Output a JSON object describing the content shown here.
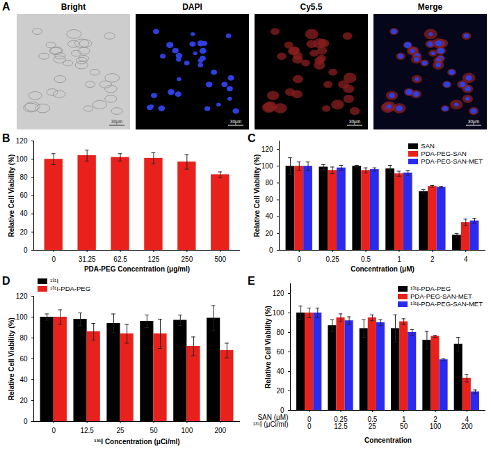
{
  "images": {
    "panel": "A",
    "titles": [
      "Bright",
      "DAPI",
      "Cy5.5",
      "Merge"
    ],
    "scale_bar": "30μm"
  },
  "chart_data": [
    {
      "panel": "B",
      "type": "bar",
      "categories": [
        "0",
        "31.25",
        "62.5",
        "125",
        "250",
        "500"
      ],
      "values": [
        100,
        104,
        102,
        101,
        97,
        83
      ],
      "errors": [
        6,
        6,
        4,
        6,
        8,
        3
      ],
      "color": "#e8211c",
      "xlabel": "PDA-PEG Concentration (μg/ml)",
      "ylabel": "Relative Cell Viability (%)",
      "ylim": [
        0,
        120
      ],
      "yticks": [
        0,
        20,
        40,
        60,
        80,
        100,
        120
      ]
    },
    {
      "panel": "C",
      "type": "bar",
      "categories": [
        "0",
        "0.25",
        "0.5",
        "1",
        "2",
        "4"
      ],
      "series": [
        {
          "name": "SAN",
          "color": "#000000",
          "values": [
            100,
            99,
            100,
            97,
            70,
            18
          ],
          "errors": [
            10,
            3,
            1,
            4,
            2,
            2
          ]
        },
        {
          "name": "PDA-PEG-SAN",
          "color": "#e8211c",
          "values": [
            100,
            95,
            95,
            91,
            76,
            33
          ],
          "errors": [
            5,
            4,
            3,
            3,
            1,
            4
          ]
        },
        {
          "name": "PDA-PEG-SAN-MET",
          "color": "#2b2bf0",
          "values": [
            100,
            98,
            96,
            92,
            75,
            35
          ],
          "errors": [
            5,
            3,
            2,
            3,
            1,
            3
          ]
        }
      ],
      "xlabel": "Concentration (μM)",
      "ylabel": "Relative Cell Viability (%)",
      "ylim": [
        0,
        130
      ],
      "yticks": [
        0,
        20,
        40,
        60,
        80,
        100,
        120
      ],
      "legend": "top-right"
    },
    {
      "panel": "D",
      "type": "bar",
      "categories": [
        "0",
        "12.5",
        "25",
        "50",
        "100",
        "200"
      ],
      "series": [
        {
          "name": "¹³¹I",
          "color": "#000000",
          "values": [
            100,
            98,
            94,
            96,
            97,
            99
          ],
          "errors": [
            3,
            6,
            9,
            6,
            5,
            12
          ]
        },
        {
          "name": "¹³¹I-PDA-PEG",
          "color": "#e8211c",
          "values": [
            100,
            86,
            84,
            84,
            72,
            68
          ],
          "errors": [
            7,
            8,
            9,
            14,
            9,
            7
          ]
        }
      ],
      "xlabel": "¹³¹I Concentration (μCi/ml)",
      "ylabel": "Relative Cell Viability (%)",
      "ylim": [
        0,
        120
      ],
      "yticks": [
        0,
        20,
        40,
        60,
        80,
        100,
        120
      ],
      "legend": "top-left"
    },
    {
      "panel": "E",
      "type": "bar",
      "categories": [
        [
          "0",
          "0"
        ],
        [
          "0.25",
          "12.5"
        ],
        [
          "0.5",
          "25"
        ],
        [
          "1",
          "50"
        ],
        [
          "2",
          "100"
        ],
        [
          "4",
          "200"
        ]
      ],
      "category_rows": [
        "SAN (μM)",
        "¹³¹I (μCi/ml)"
      ],
      "series": [
        {
          "name": "¹³¹I-PDA-PEG",
          "color": "#000000",
          "values": [
            100,
            87,
            84,
            84,
            72,
            68
          ],
          "errors": [
            7,
            6,
            9,
            14,
            9,
            7
          ]
        },
        {
          "name": "PDA-PEG-SAN-MET",
          "color": "#e8211c",
          "values": [
            100,
            95,
            95,
            91,
            76,
            33
          ],
          "errors": [
            5,
            4,
            3,
            3,
            1,
            4
          ]
        },
        {
          "name": "¹³¹I-PDA-PEG-SAN-MET",
          "color": "#2b2bf0",
          "values": [
            100,
            92,
            90,
            80,
            52,
            19
          ],
          "errors": [
            5,
            4,
            3,
            3,
            1,
            2
          ]
        }
      ],
      "xlabel": "Concentration",
      "ylabel": "Relative Cell Viability (%)",
      "ylim": [
        0,
        130
      ],
      "yticks": [
        0,
        20,
        40,
        60,
        80,
        100,
        120
      ],
      "legend": "top-right"
    }
  ]
}
